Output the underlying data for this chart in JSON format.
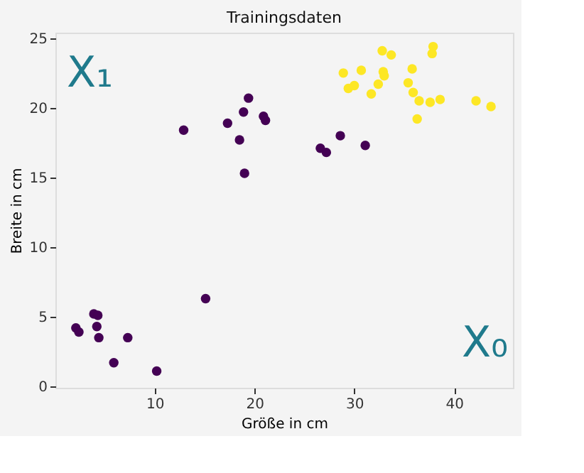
{
  "chart_data": {
    "type": "scatter",
    "title": "Trainingsdaten",
    "xlabel": "Größe in cm",
    "ylabel": "Breite in cm",
    "xlim": [
      0.05,
      45.9
    ],
    "ylim": [
      -0.1,
      25.4
    ],
    "xticks": [
      10,
      20,
      30,
      40
    ],
    "yticks": [
      0,
      5,
      10,
      15,
      20,
      25
    ],
    "grid": false,
    "legend": false,
    "marker": "circle",
    "annotations": [
      "X₁",
      "X₀"
    ],
    "series": [
      {
        "color": "#440154",
        "x": [
          2.1,
          2.4,
          3.9,
          4.3,
          4.2,
          4.4,
          7.3,
          5.9,
          10.2,
          15.1,
          12.9,
          17.3,
          18.5,
          18.9,
          19.4,
          20.9,
          21.1,
          19.0,
          26.6,
          27.2,
          28.6,
          31.1
        ],
        "values": [
          4.2,
          3.9,
          5.2,
          5.1,
          4.3,
          3.5,
          3.5,
          1.7,
          1.1,
          6.3,
          18.4,
          18.9,
          17.7,
          19.7,
          20.7,
          19.4,
          19.1,
          15.3,
          17.1,
          16.8,
          18.0,
          17.3
        ]
      },
      {
        "color": "#fde725",
        "x": [
          28.9,
          29.4,
          30.0,
          30.7,
          31.7,
          32.4,
          32.9,
          33.0,
          32.8,
          33.7,
          35.8,
          35.4,
          35.9,
          36.5,
          36.3,
          37.6,
          38.6,
          37.8,
          37.9,
          42.2,
          43.7
        ],
        "values": [
          22.5,
          21.4,
          21.6,
          22.7,
          21.0,
          21.7,
          22.6,
          22.3,
          24.1,
          23.8,
          22.8,
          21.8,
          21.1,
          20.5,
          19.2,
          20.4,
          20.6,
          23.9,
          24.4,
          20.5,
          20.1
        ]
      }
    ]
  }
}
